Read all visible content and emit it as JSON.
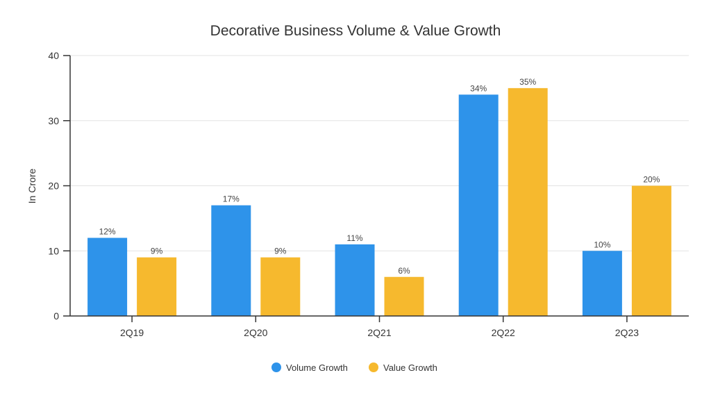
{
  "chart_data": {
    "type": "bar",
    "title": "Decorative Business Volume & Value Growth",
    "xlabel": "",
    "ylabel": "In Crore",
    "ylim": [
      0,
      40
    ],
    "yticks": [
      0,
      10,
      20,
      30,
      40
    ],
    "grid": true,
    "legend_position": "bottom-center",
    "categories": [
      "2Q19",
      "2Q20",
      "2Q21",
      "2Q22",
      "2Q23"
    ],
    "series": [
      {
        "name": "Volume Growth",
        "color": "#2e93ea",
        "values": [
          12,
          17,
          11,
          34,
          10
        ],
        "labels": [
          "12%",
          "17%",
          "11%",
          "34%",
          "10%"
        ]
      },
      {
        "name": "Value Growth",
        "color": "#f6b92e",
        "values": [
          9,
          9,
          6,
          35,
          20
        ],
        "labels": [
          "9%",
          "9%",
          "6%",
          "35%",
          "20%"
        ]
      }
    ]
  }
}
